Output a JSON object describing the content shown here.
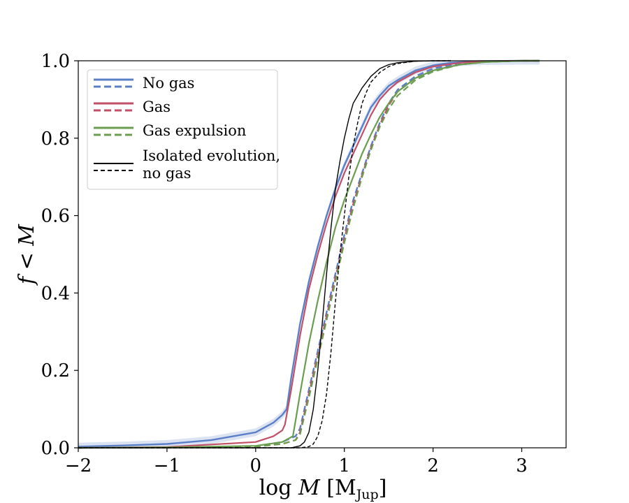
{
  "chart_data": {
    "type": "line",
    "title": "",
    "xlabel": "log M [M_Jup]",
    "xlabel_main": "log",
    "xlabel_var": "M",
    "xlabel_unit": "M",
    "xlabel_unit_sub": "Jup",
    "ylabel": "f < M",
    "ylabel_f": "f",
    "ylabel_lt": "<",
    "ylabel_m": "M",
    "xlim": [
      -2,
      3.5
    ],
    "ylim": [
      0,
      1
    ],
    "xticks": [
      -2,
      -1,
      0,
      1,
      2,
      3
    ],
    "xtick_labels": [
      "−2",
      "−1",
      "0",
      "1",
      "2",
      "3"
    ],
    "yticks": [
      0,
      0.2,
      0.4,
      0.6,
      0.8,
      1.0
    ],
    "ytick_labels": [
      "0.0",
      "0.2",
      "0.4",
      "0.6",
      "0.8",
      "1.0"
    ],
    "grid": false,
    "legend_position": "top-left",
    "legend": [
      {
        "label": "No gas",
        "color": "#5b7fc7"
      },
      {
        "label": "Gas",
        "color": "#c14f66"
      },
      {
        "label": "Gas expulsion",
        "color": "#6a9e4f"
      },
      {
        "label_line1": "Isolated evolution,",
        "label_line2": "no gas",
        "color": "#000000"
      }
    ],
    "series": [
      {
        "name": "No gas (solid)",
        "color": "#5b7fc7",
        "style": "solid",
        "width": 2.4,
        "band": true,
        "x": [
          -2,
          -1.5,
          -1,
          -0.5,
          0,
          0.2,
          0.3,
          0.35,
          0.4,
          0.5,
          0.6,
          0.7,
          0.8,
          0.9,
          1.0,
          1.1,
          1.2,
          1.3,
          1.4,
          1.5,
          1.6,
          1.8,
          2.0,
          2.2,
          2.5,
          3.0,
          3.2
        ],
        "y": [
          0.003,
          0.006,
          0.01,
          0.02,
          0.04,
          0.065,
          0.085,
          0.1,
          0.18,
          0.32,
          0.43,
          0.52,
          0.6,
          0.67,
          0.73,
          0.78,
          0.83,
          0.88,
          0.91,
          0.935,
          0.95,
          0.975,
          0.988,
          0.995,
          0.999,
          1.0,
          1.0
        ]
      },
      {
        "name": "No gas (dashed)",
        "color": "#5b7fc7",
        "style": "dashed",
        "width": 2.4,
        "band": false,
        "x": [
          -2,
          -1,
          0,
          0.3,
          0.45,
          0.5,
          0.6,
          0.7,
          0.8,
          0.9,
          1.0,
          1.1,
          1.2,
          1.3,
          1.4,
          1.5,
          1.6,
          1.8,
          2.0,
          2.3,
          2.6,
          3.0,
          3.2
        ],
        "y": [
          0.0,
          0.001,
          0.004,
          0.015,
          0.03,
          0.05,
          0.15,
          0.25,
          0.35,
          0.45,
          0.55,
          0.64,
          0.71,
          0.78,
          0.84,
          0.89,
          0.925,
          0.96,
          0.98,
          0.993,
          0.998,
          1.0,
          1.0
        ]
      },
      {
        "name": "Gas (solid)",
        "color": "#c14f66",
        "style": "solid",
        "width": 2.2,
        "band": false,
        "x": [
          -2,
          -1,
          0,
          0.2,
          0.3,
          0.33,
          0.4,
          0.5,
          0.6,
          0.7,
          0.8,
          0.9,
          1.0,
          1.1,
          1.2,
          1.3,
          1.4,
          1.5,
          1.6,
          1.8,
          2.0,
          2.3,
          2.6,
          3.0,
          3.2
        ],
        "y": [
          0.0,
          0.002,
          0.015,
          0.03,
          0.045,
          0.06,
          0.15,
          0.29,
          0.41,
          0.5,
          0.58,
          0.65,
          0.71,
          0.76,
          0.81,
          0.86,
          0.9,
          0.925,
          0.945,
          0.97,
          0.985,
          0.995,
          0.999,
          1.0,
          1.0
        ]
      },
      {
        "name": "Gas (dashed)",
        "color": "#c14f66",
        "style": "dashed",
        "width": 2.2,
        "band": false,
        "x": [
          -2,
          -1,
          0,
          0.3,
          0.45,
          0.5,
          0.6,
          0.7,
          0.8,
          0.9,
          1.0,
          1.1,
          1.2,
          1.3,
          1.4,
          1.5,
          1.6,
          1.8,
          2.0,
          2.3,
          2.6,
          3.0,
          3.2
        ],
        "y": [
          0.0,
          0.001,
          0.003,
          0.01,
          0.02,
          0.04,
          0.14,
          0.24,
          0.34,
          0.44,
          0.54,
          0.63,
          0.705,
          0.775,
          0.835,
          0.885,
          0.92,
          0.955,
          0.975,
          0.99,
          0.997,
          1.0,
          1.0
        ]
      },
      {
        "name": "Gas expulsion (solid)",
        "color": "#6a9e4f",
        "style": "solid",
        "width": 2.2,
        "band": false,
        "x": [
          -2,
          -1,
          0,
          0.3,
          0.42,
          0.45,
          0.5,
          0.6,
          0.7,
          0.8,
          0.9,
          1.0,
          1.1,
          1.2,
          1.3,
          1.4,
          1.5,
          1.6,
          1.8,
          2.0,
          2.3,
          2.6,
          3.0,
          3.2
        ],
        "y": [
          0.0,
          0.001,
          0.005,
          0.015,
          0.03,
          0.07,
          0.14,
          0.27,
          0.38,
          0.48,
          0.57,
          0.64,
          0.7,
          0.76,
          0.81,
          0.855,
          0.89,
          0.92,
          0.955,
          0.975,
          0.99,
          0.997,
          1.0,
          1.0
        ]
      },
      {
        "name": "Gas expulsion (dashed)",
        "color": "#6a9e4f",
        "style": "dashed",
        "width": 2.2,
        "band": false,
        "x": [
          -2,
          -1,
          0,
          0.3,
          0.45,
          0.5,
          0.6,
          0.7,
          0.8,
          0.9,
          1.0,
          1.1,
          1.2,
          1.3,
          1.4,
          1.5,
          1.6,
          1.8,
          2.0,
          2.3,
          2.6,
          3.0,
          3.2
        ],
        "y": [
          0.0,
          0.001,
          0.003,
          0.01,
          0.02,
          0.035,
          0.13,
          0.23,
          0.33,
          0.43,
          0.53,
          0.62,
          0.7,
          0.77,
          0.83,
          0.875,
          0.91,
          0.95,
          0.972,
          0.99,
          0.997,
          1.0,
          1.0
        ]
      },
      {
        "name": "Isolated evolution, no gas (solid)",
        "color": "#000000",
        "style": "solid",
        "width": 1.4,
        "band": false,
        "x": [
          -2,
          0,
          0.4,
          0.5,
          0.55,
          0.6,
          0.65,
          0.7,
          0.75,
          0.8,
          0.85,
          0.9,
          0.95,
          1.0,
          1.05,
          1.1,
          1.15,
          1.2,
          1.3,
          1.4,
          1.5,
          1.6,
          1.8,
          2.0,
          2.2
        ],
        "y": [
          0.0,
          0.0,
          0.0,
          0.005,
          0.015,
          0.04,
          0.1,
          0.2,
          0.32,
          0.45,
          0.57,
          0.67,
          0.74,
          0.8,
          0.85,
          0.89,
          0.91,
          0.93,
          0.96,
          0.98,
          0.99,
          0.995,
          0.999,
          1.0,
          1.0
        ]
      },
      {
        "name": "Isolated evolution, no gas (dashed)",
        "color": "#000000",
        "style": "dashed",
        "width": 1.4,
        "band": false,
        "x": [
          -2,
          0,
          0.5,
          0.6,
          0.65,
          0.7,
          0.75,
          0.8,
          0.85,
          0.9,
          0.95,
          1.0,
          1.05,
          1.1,
          1.15,
          1.2,
          1.25,
          1.3,
          1.4,
          1.5,
          1.6,
          1.8,
          2.0,
          2.2
        ],
        "y": [
          0.0,
          0.0,
          0.0,
          0.003,
          0.01,
          0.03,
          0.07,
          0.14,
          0.25,
          0.38,
          0.5,
          0.6,
          0.7,
          0.78,
          0.84,
          0.89,
          0.92,
          0.945,
          0.97,
          0.985,
          0.993,
          0.999,
          1.0,
          1.0
        ]
      }
    ]
  }
}
